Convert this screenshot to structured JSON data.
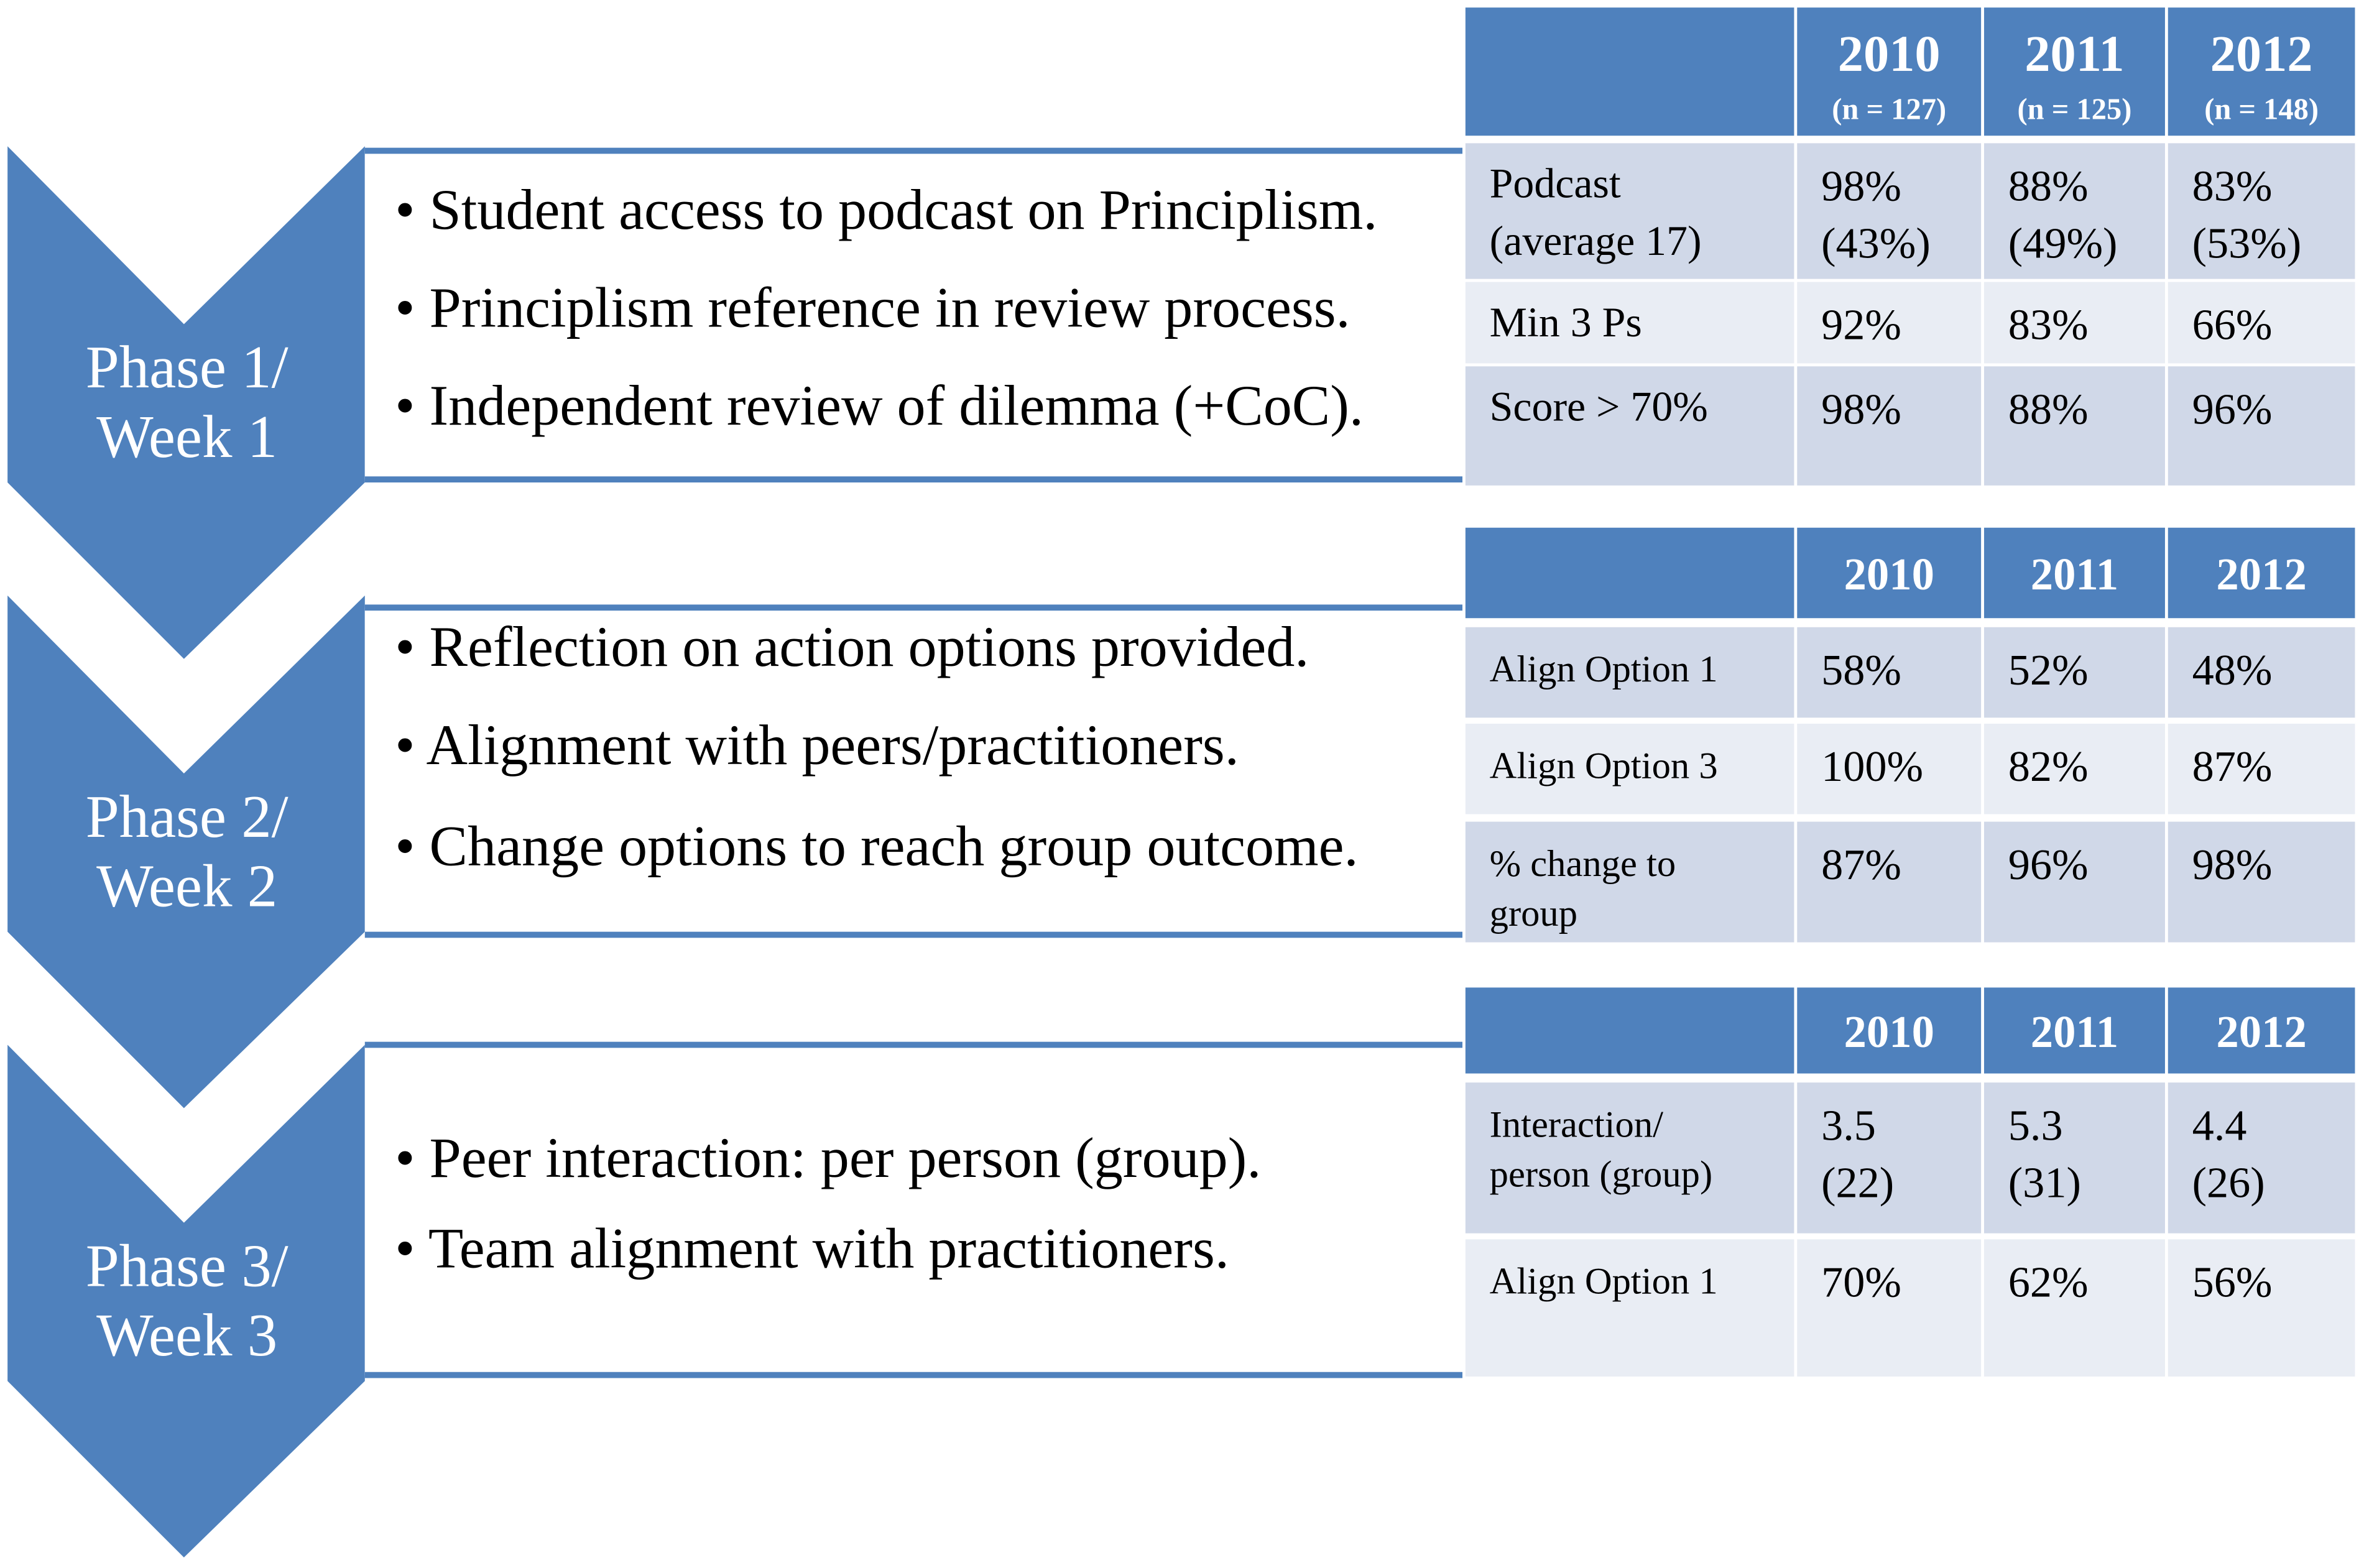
{
  "phases": [
    {
      "label": [
        "Phase 1/",
        "Week 1"
      ],
      "bullets": [
        "• Student access to podcast on Principlism.",
        "• Principlism reference in review process.",
        "• Independent review of dilemma (+CoC)."
      ]
    },
    {
      "label": [
        "Phase 2/",
        "Week 2"
      ],
      "bullets": [
        "• Reflection on action options provided.",
        "• Alignment with peers/practitioners.",
        "• Change options to reach group outcome."
      ]
    },
    {
      "label": [
        "Phase 3/",
        "Week 3"
      ],
      "bullets": [
        "•  Peer interaction: per person (group).",
        "•  Team alignment with practitioners."
      ]
    }
  ],
  "tables": [
    {
      "columns": [
        {
          "year": "2010",
          "n": "(n = 127)"
        },
        {
          "year": "2011",
          "n": "(n = 125)"
        },
        {
          "year": "2012",
          "n": "(n = 148)"
        }
      ],
      "rows": [
        {
          "label": [
            "Podcast",
            "(average  17)"
          ],
          "cells": [
            [
              "98%",
              "(43%)"
            ],
            [
              "88%",
              "(49%)"
            ],
            [
              "83%",
              "(53%)"
            ]
          ]
        },
        {
          "label": [
            "Min 3 Ps"
          ],
          "cells": [
            [
              "92%"
            ],
            [
              "83%"
            ],
            [
              "66%"
            ]
          ]
        },
        {
          "label": [
            "Score > 70%"
          ],
          "cells": [
            [
              "98%"
            ],
            [
              "88%"
            ],
            [
              "96%"
            ]
          ]
        }
      ]
    },
    {
      "columns": [
        {
          "year": "2010"
        },
        {
          "year": "2011"
        },
        {
          "year": "2012"
        }
      ],
      "rows": [
        {
          "label": [
            "Align Option 1"
          ],
          "cells": [
            [
              "58%"
            ],
            [
              "52%"
            ],
            [
              "48%"
            ]
          ]
        },
        {
          "label": [
            "Align Option 3"
          ],
          "cells": [
            [
              "100%"
            ],
            [
              "82%"
            ],
            [
              "87%"
            ]
          ]
        },
        {
          "label": [
            "% change to",
            "group"
          ],
          "cells": [
            [
              "87%"
            ],
            [
              "96%"
            ],
            [
              "98%"
            ]
          ]
        }
      ]
    },
    {
      "columns": [
        {
          "year": "2010"
        },
        {
          "year": "2011"
        },
        {
          "year": "2012"
        }
      ],
      "rows": [
        {
          "label": [
            "Interaction/",
            "person (group)"
          ],
          "cells": [
            [
              "3.5",
              "(22)"
            ],
            [
              "5.3",
              "(31)"
            ],
            [
              "4.4",
              "(26)"
            ]
          ]
        },
        {
          "label": [
            "Align Option 1"
          ],
          "cells": [
            [
              "70%"
            ],
            [
              "62%"
            ],
            [
              "56%"
            ]
          ]
        }
      ]
    }
  ]
}
